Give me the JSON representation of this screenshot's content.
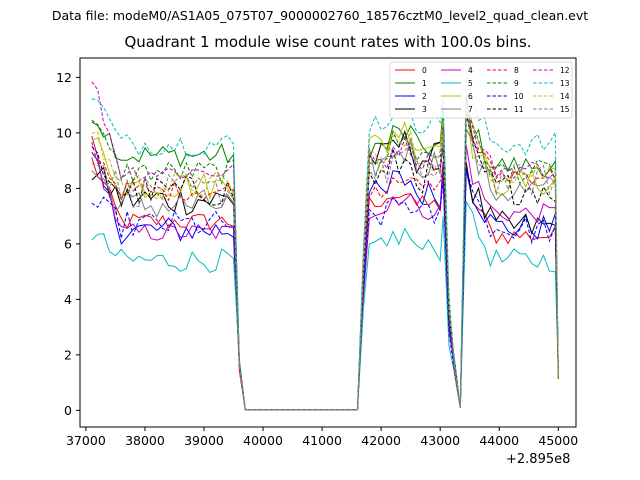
{
  "suptitle": "Data file: modeM0/AS1A05_075T07_9000002760_18576cztM0_level2_quad_clean.evt",
  "chart_data": {
    "type": "line",
    "title": "Quadrant 1 module wise count rates with 100.0s bins.",
    "xlabel": "",
    "ylabel": "",
    "x_offset_label": "+2.895e8",
    "xlim": [
      36900,
      45300
    ],
    "ylim": [
      -0.6,
      12.7
    ],
    "x_ticks": [
      37000,
      38000,
      39000,
      40000,
      41000,
      42000,
      43000,
      44000,
      45000
    ],
    "y_ticks": [
      0,
      2,
      4,
      6,
      8,
      10,
      12
    ],
    "legend_position": "top-right",
    "segments": [
      {
        "x0": 37100,
        "x1": 39500
      },
      {
        "x0": 41700,
        "x1": 43200
      },
      {
        "x0": 43400,
        "x1": 45000
      }
    ],
    "series": [
      {
        "name": "0",
        "color": "#ff0000",
        "dash": "solid",
        "level1": 6.8,
        "level2": 7.4,
        "level3": 6.3,
        "start": 9.0
      },
      {
        "name": "1",
        "color": "#008000",
        "dash": "solid",
        "level1": 9.2,
        "level2": 9.5,
        "level3": 8.8,
        "start": 10.8
      },
      {
        "name": "2",
        "color": "#0000ff",
        "dash": "solid",
        "level1": 6.5,
        "level2": 7.8,
        "level3": 6.6,
        "start": 9.0
      },
      {
        "name": "3",
        "color": "#000000",
        "dash": "solid",
        "level1": 7.6,
        "level2": 9.1,
        "level3": 6.6,
        "start": 8.6
      },
      {
        "name": "4",
        "color": "#c000c0",
        "dash": "solid",
        "level1": 6.4,
        "level2": 7.2,
        "level3": 7.1,
        "start": 9.6
      },
      {
        "name": "5",
        "color": "#00bfbf",
        "dash": "solid",
        "level1": 5.4,
        "level2": 5.8,
        "level3": 5.4,
        "start": 6.4
      },
      {
        "name": "6",
        "color": "#bfbf00",
        "dash": "solid",
        "level1": 8.1,
        "level2": 9.6,
        "level3": 8.2,
        "start": 9.8
      },
      {
        "name": "7",
        "color": "#808080",
        "dash": "solid",
        "level1": 7.4,
        "level2": 8.9,
        "level3": 7.9,
        "start": 8.7
      },
      {
        "name": "8",
        "color": "#ff0000",
        "dash": "dashed",
        "level1": 7.9,
        "level2": 8.0,
        "level3": 8.5,
        "start": 9.5
      },
      {
        "name": "9",
        "color": "#008000",
        "dash": "dashed",
        "level1": 8.6,
        "level2": 9.2,
        "level3": 8.6,
        "start": 10.4
      },
      {
        "name": "10",
        "color": "#0000ff",
        "dash": "dashed",
        "level1": 6.7,
        "level2": 7.0,
        "level3": 6.5,
        "start": 7.5
      },
      {
        "name": "11",
        "color": "#000000",
        "dash": "dashed",
        "level1": 7.9,
        "level2": 8.4,
        "level3": 8.0,
        "start": 9.2
      },
      {
        "name": "12",
        "color": "#c000c0",
        "dash": "dashed",
        "level1": 8.6,
        "level2": 9.0,
        "level3": 8.7,
        "start": 12.0
      },
      {
        "name": "13",
        "color": "#00bfbf",
        "dash": "dashed",
        "level1": 9.6,
        "level2": 10.4,
        "level3": 9.6,
        "start": 11.5
      },
      {
        "name": "14",
        "color": "#bfbf00",
        "dash": "dashed",
        "level1": 8.1,
        "level2": 9.1,
        "level3": 8.6,
        "start": 10.2
      },
      {
        "name": "15",
        "color": "#808080",
        "dash": "dashed",
        "level1": 7.9,
        "level2": 8.6,
        "level3": 8.3,
        "start": 9.4
      }
    ]
  }
}
